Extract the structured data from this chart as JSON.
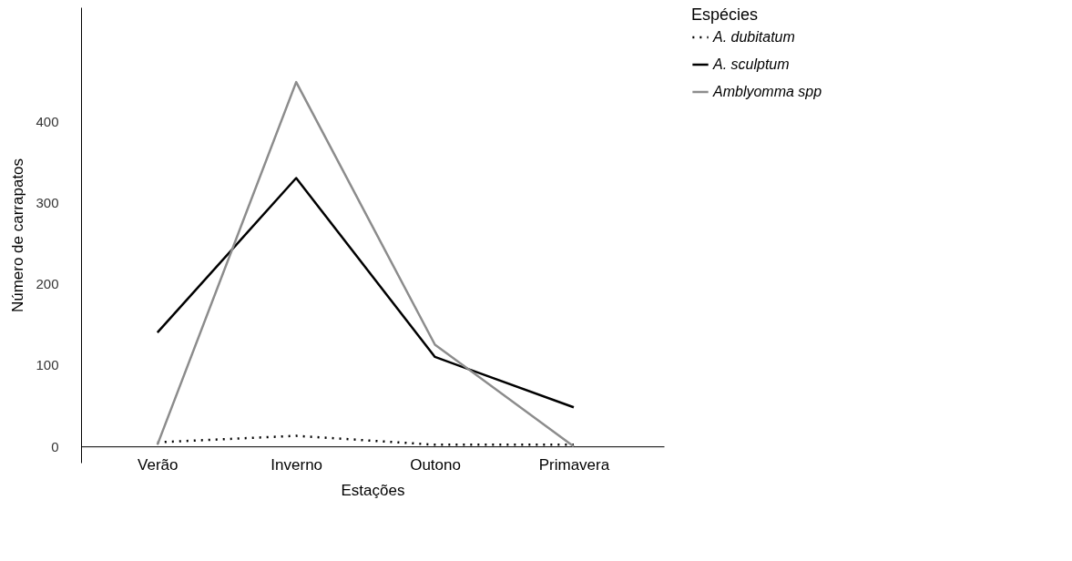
{
  "chart_data": {
    "type": "line",
    "xlabel": "Estações",
    "ylabel": "Número de carrapatos",
    "legend_title": "Espécies",
    "categories": [
      "Verão",
      "Inverno",
      "Outono",
      "Primavera"
    ],
    "series": [
      {
        "name": "A. dubitatum",
        "color": "#000000",
        "line_style": "dotted",
        "values": [
          5,
          13,
          2,
          2
        ]
      },
      {
        "name": "A. sculptum",
        "color": "#000000",
        "line_style": "solid",
        "values": [
          140,
          330,
          110,
          48
        ]
      },
      {
        "name": "Amblyomma spp",
        "color": "#8c8c8c",
        "line_style": "solid",
        "values": [
          2,
          448,
          125,
          0
        ]
      }
    ],
    "ylim": [
      -20,
      540
    ],
    "yticks": [
      0,
      100,
      200,
      300,
      400
    ],
    "grid": false,
    "legend": "right",
    "marker": "none"
  }
}
